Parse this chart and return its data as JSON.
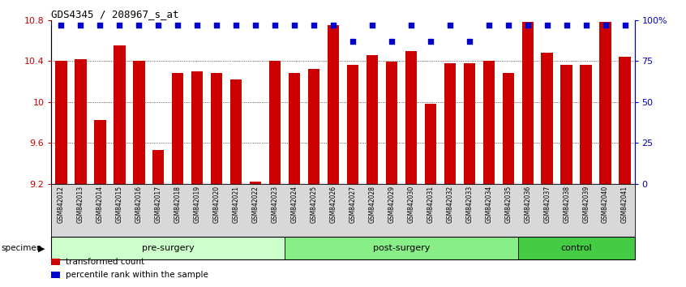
{
  "title": "GDS4345 / 208967_s_at",
  "samples": [
    "GSM842012",
    "GSM842013",
    "GSM842014",
    "GSM842015",
    "GSM842016",
    "GSM842017",
    "GSM842018",
    "GSM842019",
    "GSM842020",
    "GSM842021",
    "GSM842022",
    "GSM842023",
    "GSM842024",
    "GSM842025",
    "GSM842026",
    "GSM842027",
    "GSM842028",
    "GSM842029",
    "GSM842030",
    "GSM842031",
    "GSM842032",
    "GSM842033",
    "GSM842034",
    "GSM842035",
    "GSM842036",
    "GSM842037",
    "GSM842038",
    "GSM842039",
    "GSM842040",
    "GSM842041"
  ],
  "transformed_count": [
    10.4,
    10.42,
    9.82,
    10.55,
    10.4,
    9.53,
    10.28,
    10.3,
    10.28,
    10.22,
    9.22,
    10.4,
    10.28,
    10.32,
    10.75,
    10.36,
    10.46,
    10.39,
    10.5,
    9.98,
    10.38,
    10.38,
    10.4,
    10.28,
    10.78,
    10.48,
    10.36,
    10.36,
    10.78,
    10.44
  ],
  "percentile_rank": [
    97,
    97,
    97,
    97,
    97,
    97,
    97,
    97,
    97,
    97,
    97,
    97,
    97,
    97,
    97,
    87,
    97,
    87,
    97,
    87,
    97,
    87,
    97,
    97,
    97,
    97,
    97,
    97,
    97,
    97
  ],
  "ylim_left": [
    9.2,
    10.8
  ],
  "yticks_left": [
    9.2,
    9.6,
    10.0,
    10.4,
    10.8
  ],
  "ytick_labels_left": [
    "9.2",
    "9.6",
    "10",
    "10.4",
    "10.8"
  ],
  "ylim_right": [
    0,
    100
  ],
  "yticks_right": [
    0,
    25,
    50,
    75,
    100
  ],
  "ytick_labels_right": [
    "0",
    "25",
    "50",
    "75",
    "100%"
  ],
  "gridlines": [
    9.6,
    10.0,
    10.4
  ],
  "bar_color": "#cc0000",
  "percentile_color": "#0000cc",
  "bar_width": 0.6,
  "ylabel_left_color": "#cc0000",
  "ylabel_right_color": "#0000cc",
  "group_info": [
    {
      "label": "pre-surgery",
      "start": 0,
      "end": 11,
      "color": "#ccffcc"
    },
    {
      "label": "post-surgery",
      "start": 12,
      "end": 23,
      "color": "#88ee88"
    },
    {
      "label": "control",
      "start": 24,
      "end": 29,
      "color": "#44cc44"
    }
  ],
  "legend": [
    {
      "label": "transformed count",
      "color": "#cc0000"
    },
    {
      "label": "percentile rank within the sample",
      "color": "#0000cc"
    }
  ]
}
